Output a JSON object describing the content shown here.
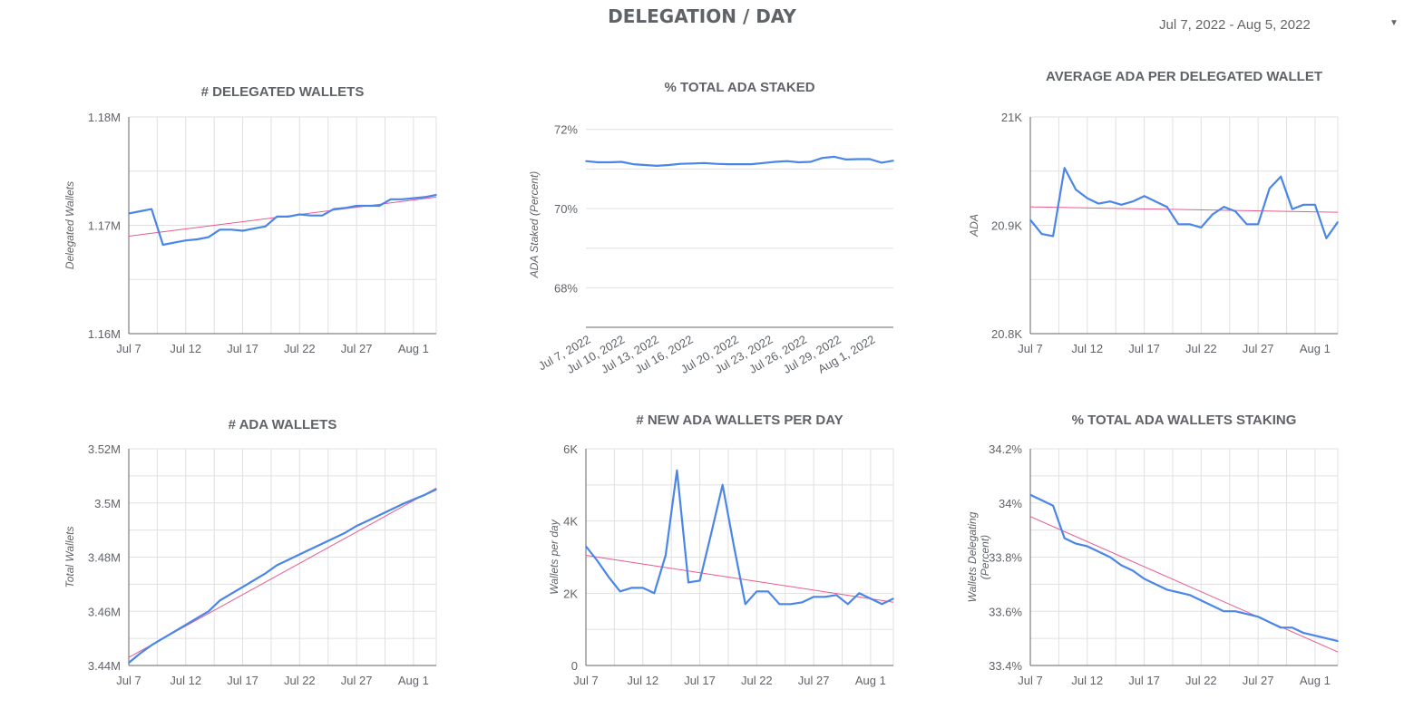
{
  "page": {
    "title": "DELEGATION / DAY"
  },
  "date_range": {
    "label": "Jul 7, 2022 - Aug 5, 2022",
    "icon": "dropdown-arrow-icon"
  },
  "colors": {
    "series": "#4a86e8",
    "trend": "#ea5a8c",
    "grid": "#e0e0e0",
    "axis": "#666666",
    "text": "#5f6368"
  },
  "chart_data": [
    {
      "type": "line",
      "title": "# DELEGATED WALLETS",
      "ylabel": "Delegated Wallets",
      "ylim": [
        1160000,
        1180000
      ],
      "yticks": [
        1160000,
        1170000,
        1180000
      ],
      "ytick_labels": [
        "1.16M",
        "1.17M",
        "1.18M"
      ],
      "xlim": [
        0,
        27
      ],
      "xticks": [
        0,
        5,
        10,
        15,
        20,
        25
      ],
      "xtick_labels": [
        "Jul 7",
        "Jul 12",
        "Jul 17",
        "Jul 22",
        "Jul 27",
        "Aug 1"
      ],
      "x_rotated": false,
      "grid": true,
      "series": [
        {
          "values": [
            1171100,
            1171300,
            1171500,
            1168200,
            1168400,
            1168600,
            1168700,
            1168900,
            1169600,
            1169600,
            1169500,
            1169700,
            1169900,
            1170800,
            1170800,
            1171000,
            1170900,
            1170900,
            1171500,
            1171600,
            1171800,
            1171800,
            1171800,
            1172400,
            1172400,
            1172500,
            1172600,
            1172800
          ]
        }
      ],
      "trendline": [
        1169000,
        1172600
      ]
    },
    {
      "type": "line",
      "title": "% TOTAL ADA STAKED",
      "ylabel": "ADA Staked (Percent)",
      "ylim": [
        67.0,
        72.2
      ],
      "yticks": [
        68,
        70,
        72
      ],
      "ytick_labels": [
        "68%",
        "70%",
        "72%"
      ],
      "xlim": [
        0,
        27
      ],
      "xticks": [
        0,
        3,
        6,
        9,
        13,
        16,
        19,
        22,
        25
      ],
      "xtick_labels": [
        "Jul 7, 2022",
        "Jul 10, 2022",
        "Jul 13, 2022",
        "Jul 16, 2022",
        "Jul 20, 2022",
        "Jul 23, 2022",
        "Jul 26, 2022",
        "Jul 29, 2022",
        "Aug 1, 2022"
      ],
      "x_rotated": true,
      "grid": true,
      "series": [
        {
          "values": [
            71.2,
            71.17,
            71.17,
            71.18,
            71.12,
            71.1,
            71.08,
            71.1,
            71.13,
            71.14,
            71.15,
            71.13,
            71.12,
            71.12,
            71.12,
            71.15,
            71.18,
            71.2,
            71.17,
            71.18,
            71.28,
            71.31,
            71.24,
            71.25,
            71.25,
            71.16,
            71.21
          ]
        }
      ]
    },
    {
      "type": "line",
      "title": "AVERAGE ADA PER DELEGATED WALLET",
      "ylabel": "ADA",
      "ylim": [
        20800,
        21000
      ],
      "yticks": [
        20800,
        20900,
        21000
      ],
      "ytick_labels": [
        "20.8K",
        "20.9K",
        "21K"
      ],
      "xlim": [
        0,
        27
      ],
      "xticks": [
        0,
        5,
        10,
        15,
        20,
        25
      ],
      "xtick_labels": [
        "Jul 7",
        "Jul 12",
        "Jul 17",
        "Jul 22",
        "Jul 27",
        "Aug 1"
      ],
      "x_rotated": false,
      "grid": true,
      "series": [
        {
          "values": [
            20905,
            20892,
            20890,
            20953,
            20933,
            20925,
            20920,
            20922,
            20919,
            20922,
            20927,
            20922,
            20917,
            20901,
            20901,
            20898,
            20910,
            20917,
            20913,
            20901,
            20901,
            20934,
            20945,
            20915,
            20919,
            20919,
            20888,
            20903
          ]
        }
      ],
      "trendline": [
        20917,
        20912
      ]
    },
    {
      "type": "line",
      "title": "# ADA WALLETS",
      "ylabel": "Total Wallets",
      "ylim": [
        3440000,
        3520000
      ],
      "yticks": [
        3440000,
        3460000,
        3480000,
        3500000,
        3520000
      ],
      "ytick_labels": [
        "3.44M",
        "3.46M",
        "3.48M",
        "3.5M",
        "3.52M"
      ],
      "xlim": [
        0,
        27
      ],
      "xticks": [
        0,
        5,
        10,
        15,
        20,
        25
      ],
      "xtick_labels": [
        "Jul 7",
        "Jul 12",
        "Jul 17",
        "Jul 22",
        "Jul 27",
        "Aug 1"
      ],
      "x_rotated": false,
      "grid": true,
      "series": [
        {
          "values": [
            3441000,
            3444500,
            3447500,
            3450000,
            3452500,
            3455000,
            3457500,
            3460000,
            3464000,
            3466500,
            3469000,
            3471500,
            3474000,
            3477000,
            3479000,
            3481000,
            3483000,
            3485000,
            3487000,
            3489000,
            3491500,
            3493500,
            3495500,
            3497500,
            3499500,
            3501300,
            3503000,
            3505000
          ]
        }
      ],
      "trendline": [
        3443000,
        3505500
      ]
    },
    {
      "type": "line",
      "title": "# NEW ADA WALLETS PER DAY",
      "ylabel": "Wallets per day",
      "ylim": [
        0,
        6000
      ],
      "yticks": [
        0,
        2000,
        4000,
        6000
      ],
      "ytick_labels": [
        "0",
        "2K",
        "4K",
        "6K"
      ],
      "xlim": [
        0,
        27
      ],
      "xticks": [
        0,
        5,
        10,
        15,
        20,
        25
      ],
      "xtick_labels": [
        "Jul 7",
        "Jul 12",
        "Jul 17",
        "Jul 22",
        "Jul 27",
        "Aug 1"
      ],
      "x_rotated": false,
      "grid": true,
      "series": [
        {
          "values": [
            3300,
            2900,
            2450,
            2050,
            2150,
            2150,
            2000,
            3050,
            5400,
            2300,
            2350,
            3650,
            5000,
            3300,
            1700,
            2050,
            2050,
            1700,
            1700,
            1750,
            1900,
            1900,
            1950,
            1700,
            2000,
            1850,
            1700,
            1850
          ]
        }
      ],
      "trendline": [
        3050,
        1750
      ]
    },
    {
      "type": "line",
      "title": "% TOTAL ADA WALLETS STAKING",
      "ylabel": "Wallets Delegating (Percent)",
      "ylim": [
        33.4,
        34.2
      ],
      "yticks": [
        33.4,
        33.6,
        33.8,
        34.0,
        34.2
      ],
      "ytick_labels": [
        "33.4%",
        "33.6%",
        "33.8%",
        "34%",
        "34.2%"
      ],
      "xlim": [
        0,
        27
      ],
      "xticks": [
        0,
        5,
        10,
        15,
        20,
        25
      ],
      "xtick_labels": [
        "Jul 7",
        "Jul 12",
        "Jul 17",
        "Jul 22",
        "Jul 27",
        "Aug 1"
      ],
      "x_rotated": false,
      "grid": true,
      "series": [
        {
          "values": [
            34.03,
            34.01,
            33.99,
            33.87,
            33.85,
            33.84,
            33.82,
            33.8,
            33.77,
            33.75,
            33.72,
            33.7,
            33.68,
            33.67,
            33.66,
            33.64,
            33.62,
            33.6,
            33.6,
            33.59,
            33.58,
            33.56,
            33.54,
            33.54,
            33.52,
            33.51,
            33.5,
            33.49
          ]
        }
      ],
      "trendline": [
        33.95,
        33.45
      ]
    }
  ]
}
